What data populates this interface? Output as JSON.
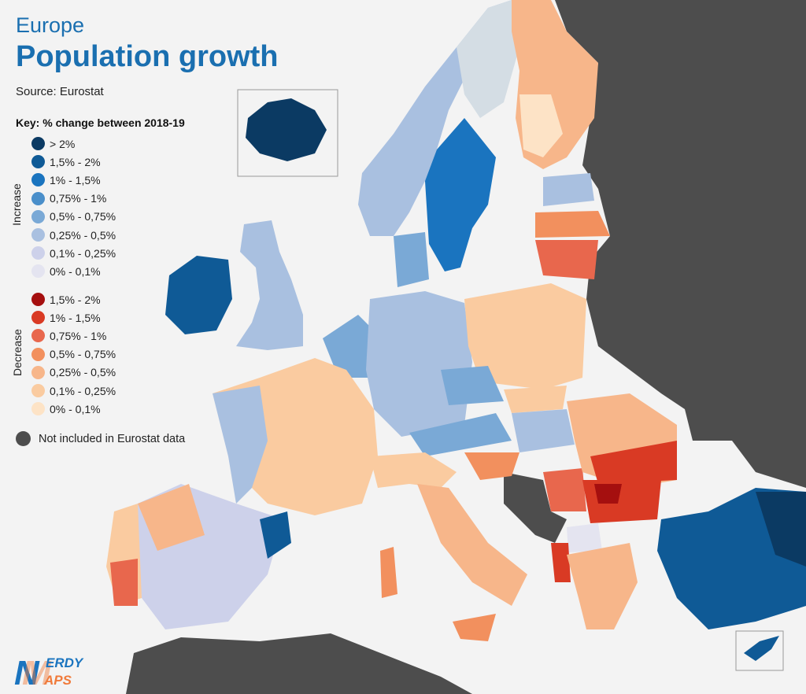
{
  "header": {
    "region": "Europe",
    "title": "Population growth",
    "source": "Source: Eurostat"
  },
  "key": {
    "title": "Key: % change between 2018-19",
    "increase_label": "Increase",
    "decrease_label": "Decrease",
    "increase": [
      {
        "label": "> 2%",
        "color": "#0b3a63"
      },
      {
        "label": "1,5% - 2%",
        "color": "#0f5a96"
      },
      {
        "label": "1% - 1,5%",
        "color": "#1a74bf"
      },
      {
        "label": "0,75% - 1%",
        "color": "#4a8fca"
      },
      {
        "label": "0,5% - 0,75%",
        "color": "#7aa9d6"
      },
      {
        "label": "0,25% - 0,5%",
        "color": "#a9c0e0"
      },
      {
        "label": "0,1% - 0,25%",
        "color": "#cdd1ea"
      },
      {
        "label": "0% - 0,1%",
        "color": "#e4e4f0"
      }
    ],
    "decrease": [
      {
        "label": "1,5% - 2%",
        "color": "#a50f0f"
      },
      {
        "label": "1% - 1,5%",
        "color": "#d93a24"
      },
      {
        "label": "0,75% - 1%",
        "color": "#e8674d"
      },
      {
        "label": "0,5% - 0,75%",
        "color": "#f2905e"
      },
      {
        "label": "0,25% - 0,5%",
        "color": "#f7b68a"
      },
      {
        "label": "0,1% - 0,25%",
        "color": "#facba0"
      },
      {
        "label": "0% - 0,1%",
        "color": "#fde3c6"
      }
    ],
    "not_included": {
      "label": "Not included in Eurostat data",
      "color": "#4d4d4d"
    }
  },
  "logo": {
    "text_top": "ERDY",
    "text_bottom": "APS"
  }
}
